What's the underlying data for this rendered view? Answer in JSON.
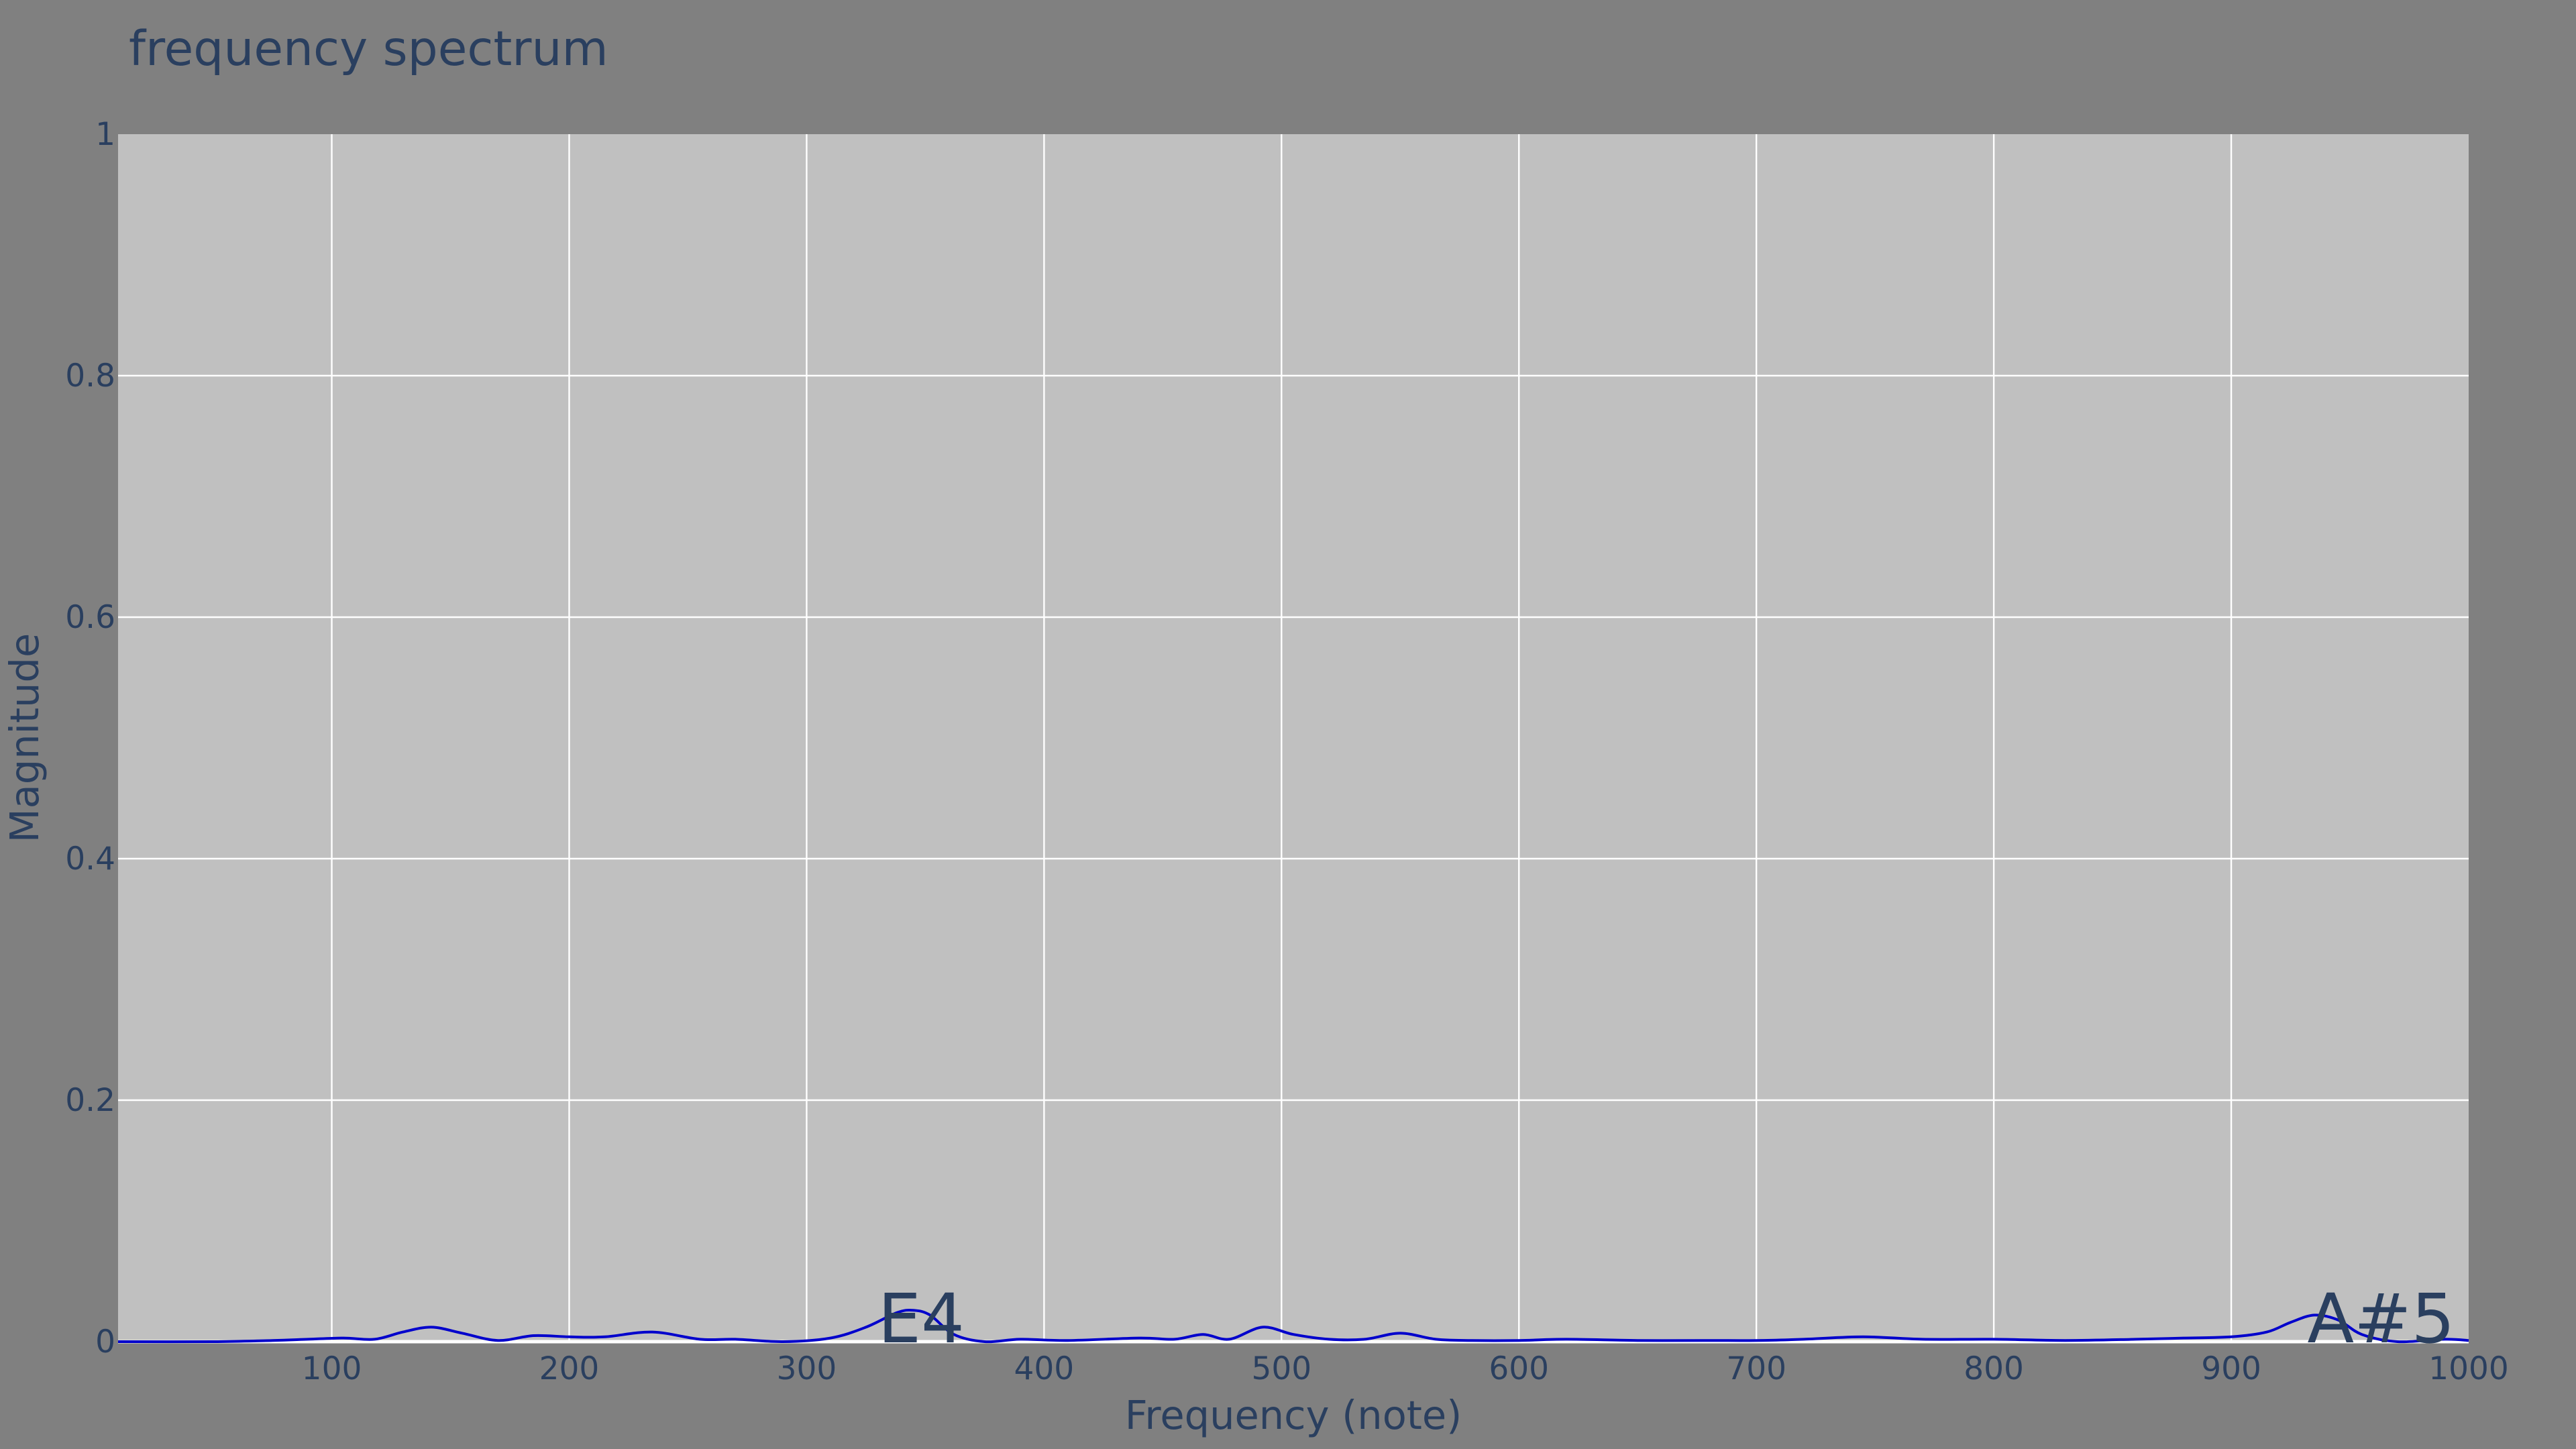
{
  "chart_data": {
    "type": "line",
    "title": "frequency spectrum",
    "xlabel": "Frequency (note)",
    "ylabel": "Magnitude",
    "xlim": [
      10,
      1000
    ],
    "ylim": [
      0,
      1
    ],
    "x_ticks": [
      100,
      200,
      300,
      400,
      500,
      600,
      700,
      800,
      900,
      1000
    ],
    "y_ticks": [
      0,
      0.2,
      0.4,
      0.6,
      0.8,
      1
    ],
    "y_tick_labels": [
      "0",
      "0.2",
      "0.4",
      "0.6",
      "0.8",
      "1"
    ],
    "grid": true,
    "legend": "none",
    "colors": {
      "line": "#0000cc",
      "plot_bg": "#c0c0c0",
      "page_bg": "#808080",
      "text": "#2a3f5f",
      "grid": "#ffffff"
    },
    "series": [
      {
        "x": [
          10,
          50,
          75,
          90,
          105,
          118,
          130,
          142,
          155,
          170,
          185,
          200,
          215,
          235,
          255,
          270,
          290,
          310,
          325,
          338,
          345,
          352,
          362,
          375,
          390,
          410,
          440,
          455,
          467,
          478,
          492,
          505,
          520,
          535,
          550,
          565,
          580,
          600,
          620,
          650,
          680,
          700,
          720,
          745,
          770,
          800,
          830,
          860,
          880,
          900,
          915,
          925,
          935,
          945,
          955,
          970,
          990,
          1000
        ],
        "y": [
          0.0,
          0.0,
          0.001,
          0.002,
          0.003,
          0.002,
          0.008,
          0.012,
          0.007,
          0.001,
          0.005,
          0.004,
          0.004,
          0.008,
          0.002,
          0.002,
          0.0,
          0.003,
          0.012,
          0.024,
          0.026,
          0.022,
          0.006,
          0.0,
          0.002,
          0.001,
          0.003,
          0.002,
          0.006,
          0.002,
          0.012,
          0.006,
          0.002,
          0.002,
          0.007,
          0.002,
          0.001,
          0.001,
          0.002,
          0.001,
          0.001,
          0.001,
          0.002,
          0.004,
          0.002,
          0.002,
          0.001,
          0.002,
          0.003,
          0.004,
          0.008,
          0.016,
          0.022,
          0.018,
          0.006,
          0.0,
          0.002,
          0.001
        ]
      }
    ],
    "annotations": [
      {
        "text": "E4",
        "x": 330,
        "y": 0.0
      },
      {
        "text": "A#5",
        "x": 932,
        "y": 0.0
      }
    ]
  }
}
